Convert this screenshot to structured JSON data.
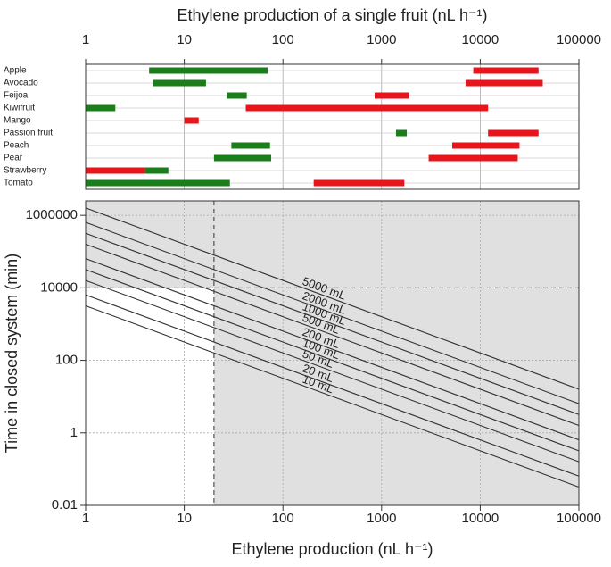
{
  "chart_data": [
    {
      "type": "range-bar",
      "xlabel": "Ethylene production of a single fruit (nL h⁻¹)",
      "x_axis": "top",
      "xscale": "log",
      "xlim": [
        1,
        100000
      ],
      "xticks": [
        1,
        10,
        100,
        1000,
        10000,
        100000
      ],
      "categories": [
        "Apple",
        "Avocado",
        "Feijoa",
        "Kiwifruit",
        "Mango",
        "Passion fruit",
        "Peach",
        "Pear",
        "Strawberry",
        "Tomato"
      ],
      "series": [
        {
          "color": "#1a7f1a",
          "values": [
            [
              4.4,
              70
            ],
            [
              4.8,
              16.6
            ],
            [
              27,
              43
            ],
            [
              1,
              2
            ],
            null,
            [
              1400,
              1800
            ],
            [
              30,
              74
            ],
            [
              20,
              76
            ],
            [
              4,
              6.9
            ],
            [
              1,
              29
            ]
          ]
        },
        {
          "color": "#e8161b",
          "values": [
            [
              8500,
              39000
            ],
            [
              7100,
              43000
            ],
            [
              850,
              1900
            ],
            [
              42,
              12000
            ],
            [
              10,
              14
            ],
            [
              12000,
              39000
            ],
            [
              5200,
              25000
            ],
            [
              3000,
              24000
            ],
            [
              1,
              4
            ],
            [
              205,
              1700
            ]
          ]
        }
      ]
    },
    {
      "type": "line",
      "xlabel": "Ethylene production (nL h⁻¹)",
      "ylabel": "Time in closed system (min)",
      "x_axis": "bottom",
      "xscale": "log",
      "yscale": "log",
      "xlim": [
        1,
        100000
      ],
      "xticks": [
        1,
        10,
        100,
        1000,
        10000,
        100000
      ],
      "ylim": [
        0.01,
        2500000
      ],
      "yticks": [
        0.01,
        1,
        100,
        10000,
        1000000
      ],
      "reference_lines": {
        "x": 20,
        "y": 10000
      },
      "x": [
        1,
        100000
      ],
      "series": [
        {
          "name": "10 mL",
          "color": "#333333",
          "values": [
            3200,
            0.032
          ]
        },
        {
          "name": "20 mL",
          "color": "#333333",
          "values": [
            6400,
            0.064
          ]
        },
        {
          "name": "50 mL",
          "color": "#333333",
          "values": [
            16000,
            0.16
          ]
        },
        {
          "name": "100 mL",
          "color": "#333333",
          "values": [
            32000,
            0.32
          ]
        },
        {
          "name": "200 mL",
          "color": "#333333",
          "values": [
            64000,
            0.64
          ]
        },
        {
          "name": "500 mL",
          "color": "#333333",
          "values": [
            160000,
            1.6
          ]
        },
        {
          "name": "1000 mL",
          "color": "#333333",
          "values": [
            320000,
            3.2
          ]
        },
        {
          "name": "2000 mL",
          "color": "#333333",
          "values": [
            640000,
            6.4
          ]
        },
        {
          "name": "5000 mL",
          "color": "#333333",
          "values": [
            1600000,
            16
          ]
        }
      ]
    }
  ]
}
